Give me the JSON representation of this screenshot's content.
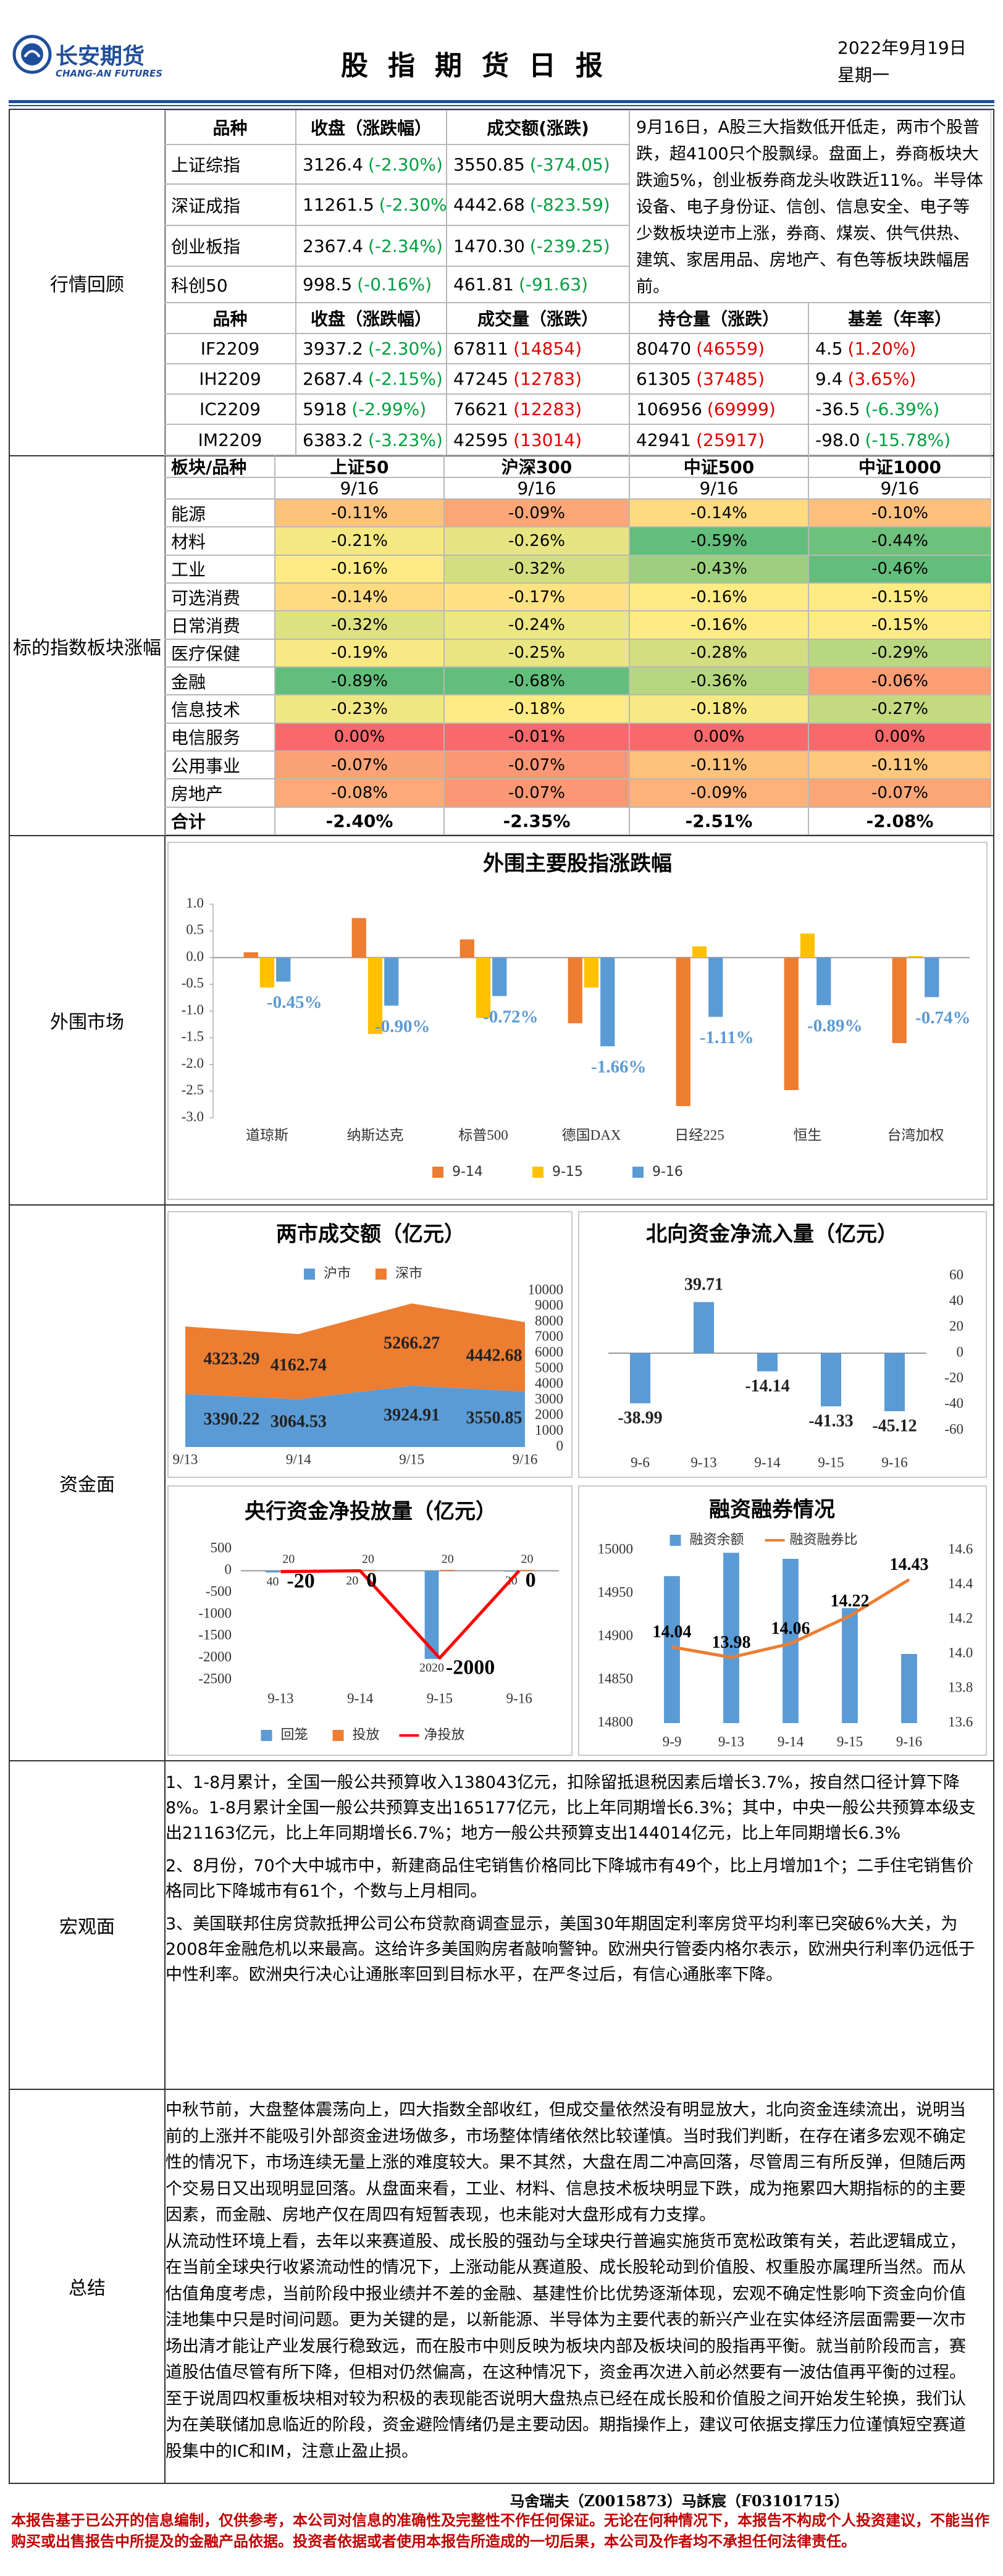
{
  "header": {
    "logo_name": "长安期货",
    "logo_en": "CHANG-AN FUTURES",
    "title": "股指期货日报",
    "date": "2022年9月19日",
    "weekday": "星期一"
  },
  "sections": [
    "行情回顾",
    "标的指数板块涨幅",
    "外围市场",
    "资金面",
    "宏观面",
    "总结"
  ],
  "market": {
    "header": [
      "品种",
      "收盘（涨跌幅）",
      "成交额(涨跌)"
    ],
    "rows": [
      [
        "上证综指",
        "3126.4",
        "(-2.30%)",
        "3550.85",
        "(-374.05)"
      ],
      [
        "深证成指",
        "11261.5",
        "(-2.30%)",
        "4442.68",
        "(-823.59)"
      ],
      [
        "创业板指",
        "2367.4",
        "(-2.34%)",
        "1470.30",
        "(-239.25)"
      ],
      [
        "科创50",
        "998.5",
        "(-0.16%)",
        "461.81",
        "(-91.63)"
      ]
    ],
    "commentary": "9月16日，A股三大指数低开低走，两市个股普跌，超4100只个股飘绿。盘面上，券商板块大跌逾5%，创业板券商龙头收跌近11%。半导体设备、电子身份证、信创、信息安全、电子等少数板块逆市上涨，券商、煤炭、供气供热、建筑、家居用品、房地产、有色等板块跌幅居前。"
  },
  "futures": {
    "header": [
      "品种",
      "收盘（涨跌幅）",
      "成交量（涨跌）",
      "持仓量（涨跌）",
      "基差（年率）"
    ],
    "rows": [
      [
        "IF2209",
        "3937.2",
        "(-2.30%)",
        "67811",
        "(14854)",
        "80470",
        "(46559)",
        "4.5",
        "(1.20%)"
      ],
      [
        "IH2209",
        "2687.4",
        "(-2.15%)",
        "47245",
        "(12783)",
        "61305",
        "(37485)",
        "9.4",
        "(3.65%)"
      ],
      [
        "IC2209",
        "5918",
        "(-2.99%)",
        "76621",
        "(12283)",
        "106956",
        "(69999)",
        "-36.5",
        "(-6.39%)"
      ],
      [
        "IM2209",
        "6383.2",
        "(-3.23%)",
        "42595",
        "(13014)",
        "42941",
        "(25917)",
        "-98.0",
        "(-15.78%)"
      ]
    ]
  },
  "sectors": {
    "header": [
      "板块/品种",
      "上证50",
      "沪深300",
      "中证500",
      "中证1000"
    ],
    "dates": [
      "9/16",
      "9/16",
      "9/16",
      "9/16"
    ],
    "rows": [
      [
        "能源",
        "-0.11%",
        "-0.09%",
        "-0.14%",
        "-0.10%"
      ],
      [
        "材料",
        "-0.21%",
        "-0.26%",
        "-0.59%",
        "-0.44%"
      ],
      [
        "工业",
        "-0.16%",
        "-0.32%",
        "-0.43%",
        "-0.46%"
      ],
      [
        "可选消费",
        "-0.14%",
        "-0.17%",
        "-0.16%",
        "-0.15%"
      ],
      [
        "日常消费",
        "-0.32%",
        "-0.24%",
        "-0.16%",
        "-0.15%"
      ],
      [
        "医疗保健",
        "-0.19%",
        "-0.25%",
        "-0.28%",
        "-0.29%"
      ],
      [
        "金融",
        "-0.89%",
        "-0.68%",
        "-0.36%",
        "-0.06%"
      ],
      [
        "信息技术",
        "-0.23%",
        "-0.18%",
        "-0.18%",
        "-0.27%"
      ],
      [
        "电信服务",
        "0.00%",
        "-0.01%",
        "0.00%",
        "0.00%"
      ],
      [
        "公用事业",
        "-0.07%",
        "-0.07%",
        "-0.11%",
        "-0.11%"
      ],
      [
        "房地产",
        "-0.08%",
        "-0.07%",
        "-0.09%",
        "-0.07%"
      ]
    ],
    "total": [
      "合计",
      "-2.40%",
      "-2.35%",
      "-2.51%",
      "-2.08%"
    ],
    "scale_colors": [
      "#63be7b",
      "#ffeb84",
      "#f8696b"
    ]
  },
  "chart_data": [
    {
      "type": "bar",
      "title": "外围主要股指涨跌幅",
      "categories": [
        "道琼斯",
        "纳斯达克",
        "标普500",
        "德国DAX",
        "日经225",
        "恒生",
        "台湾加权"
      ],
      "series": [
        {
          "name": "9-14",
          "color": "#ed7d31",
          "values": [
            0.1,
            0.74,
            0.34,
            -1.23,
            -2.78,
            -2.48,
            -1.6
          ]
        },
        {
          "name": "9-15",
          "color": "#ffc000",
          "values": [
            -0.56,
            -1.43,
            -1.13,
            -0.56,
            0.21,
            0.45,
            0.03
          ]
        },
        {
          "name": "9-16",
          "color": "#5b9bd5",
          "values": [
            -0.45,
            -0.9,
            -0.72,
            -1.66,
            -1.11,
            -0.89,
            -0.74
          ],
          "value_labels": [
            "-0.45%",
            "-0.90%",
            "-0.72%",
            "-1.66%",
            "-1.11%",
            "-0.89%",
            "-0.74%"
          ]
        }
      ],
      "ylim": [
        -3.0,
        1.0
      ],
      "yticks": [
        {
          "value": -3.0,
          "label": "-3.0"
        },
        -2.5,
        {
          "value": -2.0,
          "label": "-2.0"
        },
        -1.5,
        {
          "value": -1.0,
          "label": "-1.0"
        },
        -0.5,
        {
          "value": 0.0,
          "label": "0.0"
        },
        0.5,
        {
          "value": 1.0,
          "label": "1.0"
        }
      ],
      "legend": "bottom",
      "grid": false
    },
    {
      "type": "area",
      "title": "两市成交额（亿元）",
      "stacked": true,
      "categories": [
        "9/13",
        "9/14",
        "9/15",
        "9/16"
      ],
      "series": [
        {
          "name": "沪市",
          "color": "#5b9bd5",
          "values": [
            3390.22,
            3064.53,
            3924.91,
            3550.85
          ],
          "data_labels": true
        },
        {
          "name": "深市",
          "color": "#ed7d31",
          "values": [
            4323.29,
            4162.74,
            5266.27,
            4442.68
          ],
          "data_labels": true
        }
      ],
      "ylim": [
        0,
        10000
      ],
      "yticks": [
        0,
        1000,
        2000,
        3000,
        4000,
        5000,
        6000,
        7000,
        8000,
        9000,
        10000
      ],
      "yaxis_position": "right",
      "legend": "top",
      "grid": false
    },
    {
      "type": "bar",
      "title": "北向资金净流入量（亿元）",
      "categories": [
        "9-6",
        "9-13",
        "9-14",
        "9-15",
        "9-16"
      ],
      "values": [
        -38.99,
        39.71,
        -14.14,
        -41.33,
        -45.12
      ],
      "color": "#5b9bd5",
      "data_labels": true,
      "ylim": [
        -60,
        60
      ],
      "yticks": [
        -60,
        -40,
        -20,
        0,
        20,
        40,
        60
      ],
      "yaxis_position": "right",
      "grid": false
    },
    {
      "type": "bar",
      "title": "央行资金净投放量（亿元）",
      "categories": [
        "9-13",
        "9-14",
        "9-15",
        "9-16"
      ],
      "series": [
        {
          "name": "回笼",
          "color": "#5b9bd5",
          "values": [
            -40,
            -20,
            -2020,
            -20
          ],
          "value_labels": [
            "40",
            "20",
            "2020",
            "20"
          ]
        },
        {
          "name": "投放",
          "color": "#ed7d31",
          "values": [
            20,
            20,
            20,
            20
          ],
          "data_labels": true
        },
        {
          "name": "净投放",
          "color": "#ff0000",
          "type": "line",
          "values": [
            -20,
            0,
            -2000,
            0
          ],
          "data_labels": true
        }
      ],
      "ylim": [
        -2500,
        500
      ],
      "yticks": [
        -2500,
        -2000,
        -1500,
        -1000,
        -500,
        0,
        500
      ],
      "legend": "bottom",
      "grid": false
    },
    {
      "type": "bar",
      "title": "融资融券情况",
      "categories": [
        "9-9",
        "9-13",
        "9-14",
        "9-15",
        "9-16"
      ],
      "series": [
        {
          "name": "融资余额",
          "color": "#5b9bd5",
          "values": [
            14970,
            14997,
            14990,
            14933,
            14880
          ]
        },
        {
          "name": "融资融券比",
          "color": "#ed7d31",
          "type": "line",
          "axis": "y2",
          "values": [
            14.04,
            13.98,
            14.06,
            14.22,
            14.43
          ],
          "data_labels": true
        }
      ],
      "ylim": [
        14800,
        15000
      ],
      "yticks": [
        14800,
        14850,
        14900,
        14950,
        15000
      ],
      "y2lim": [
        13.6,
        14.6
      ],
      "y2ticks": [
        13.6,
        13.8,
        {
          "value": 14.0,
          "label": "14.0"
        },
        14.2,
        14.4,
        14.6
      ],
      "legend": "top",
      "grid": false
    }
  ],
  "macro": {
    "paragraphs": [
      "1、1-8月累计，全国一般公共预算收入138043亿元，扣除留抵退税因素后增长3.7%，按自然口径计算下降8%。1-8月累计全国一般公共预算支出165177亿元，比上年同期增长6.3%；其中，中央一般公共预算本级支出21163亿元，比上年同期增长6.7%；地方一般公共预算支出144014亿元，比上年同期增长6.3%",
      "2、8月份，70个大中城市中，新建商品住宅销售价格同比下降城市有49个，比上月增加1个；二手住宅销售价格同比下降城市有61个，个数与上月相同。",
      "3、美国联邦住房贷款抵押公司公布贷款商调查显示，美国30年期固定利率房贷平均利率已突破6%大关，为2008年金融危机以来最高。这给许多美国购房者敲响警钟。欧洲央行管委内格尔表示，欧洲央行利率仍远低于中性利率。欧洲央行决心让通胀率回到目标水平，在严冬过后，有信心通胀率下降。"
    ]
  },
  "summary": {
    "paragraphs": [
      "中秋节前，大盘整体震荡向上，四大指数全部收红，但成交量依然没有明显放大，北向资金连续流出，说明当前的上涨并不能吸引外部资金进场做多，市场整体情绪依然比较谨慎。当时我们判断，在存在诸多宏观不确定性的情况下，市场连续无量上涨的难度较大。果不其然，大盘在周二冲高回落，尽管周三有所反弹，但随后两个交易日又出现明显回落。从盘面来看，工业、材料、信息技术板块明显下跌，成为拖累四大期指标的的主要因素，而金融、房地产仅在周四有短暂表现，也未能对大盘形成有力支撑。",
      "从流动性环境上看，去年以来赛道股、成长股的强劲与全球央行普遍实施货币宽松政策有关，若此逻辑成立，在当前全球央行收紧流动性的情况下，上涨动能从赛道股、成长股轮动到价值股、权重股亦属理所当然。而从估值角度考虑，当前阶段中报业绩并不差的金融、基建性价比优势逐渐体现，宏观不确定性影响下资金向价值洼地集中只是时间问题。更为关键的是，以新能源、半导体为主要代表的新兴产业在实体经济层面需要一次市场出清才能让产业发展行稳致远，而在股市中则反映为板块内部及板块间的股指再平衡。就当前阶段而言，赛道股估值尽管有所下降，但相对仍然偏高，在这种情况下，资金再次进入前必然要有一波估值再平衡的过程。至于说周四权重板块相对较为积极的表现能否说明大盘热点已经在成长股和价值股之间开始发生轮换，我们认为在美联储加息临近的阶段，资金避险情绪仍是主要动因。期指操作上，建议可依据支撑压力位谨慎短空赛道股集中的IC和IM，注意止盈止损。"
    ]
  },
  "footer": {
    "authors": "马舍瑞夫（Z0015873）马訸宸（F03101715）",
    "disclaimer": "本报告基于已公开的信息编制，仅供参考，本公司对信息的准确性及完整性不作任何保证。无论在何种情况下，本报告不构成个人投资建议，不能当作购买或出售报告中所提及的金融产品依据。投资者依据或者使用本报告所造成的一切后果，本公司及作者均不承担任何法律责任。"
  }
}
